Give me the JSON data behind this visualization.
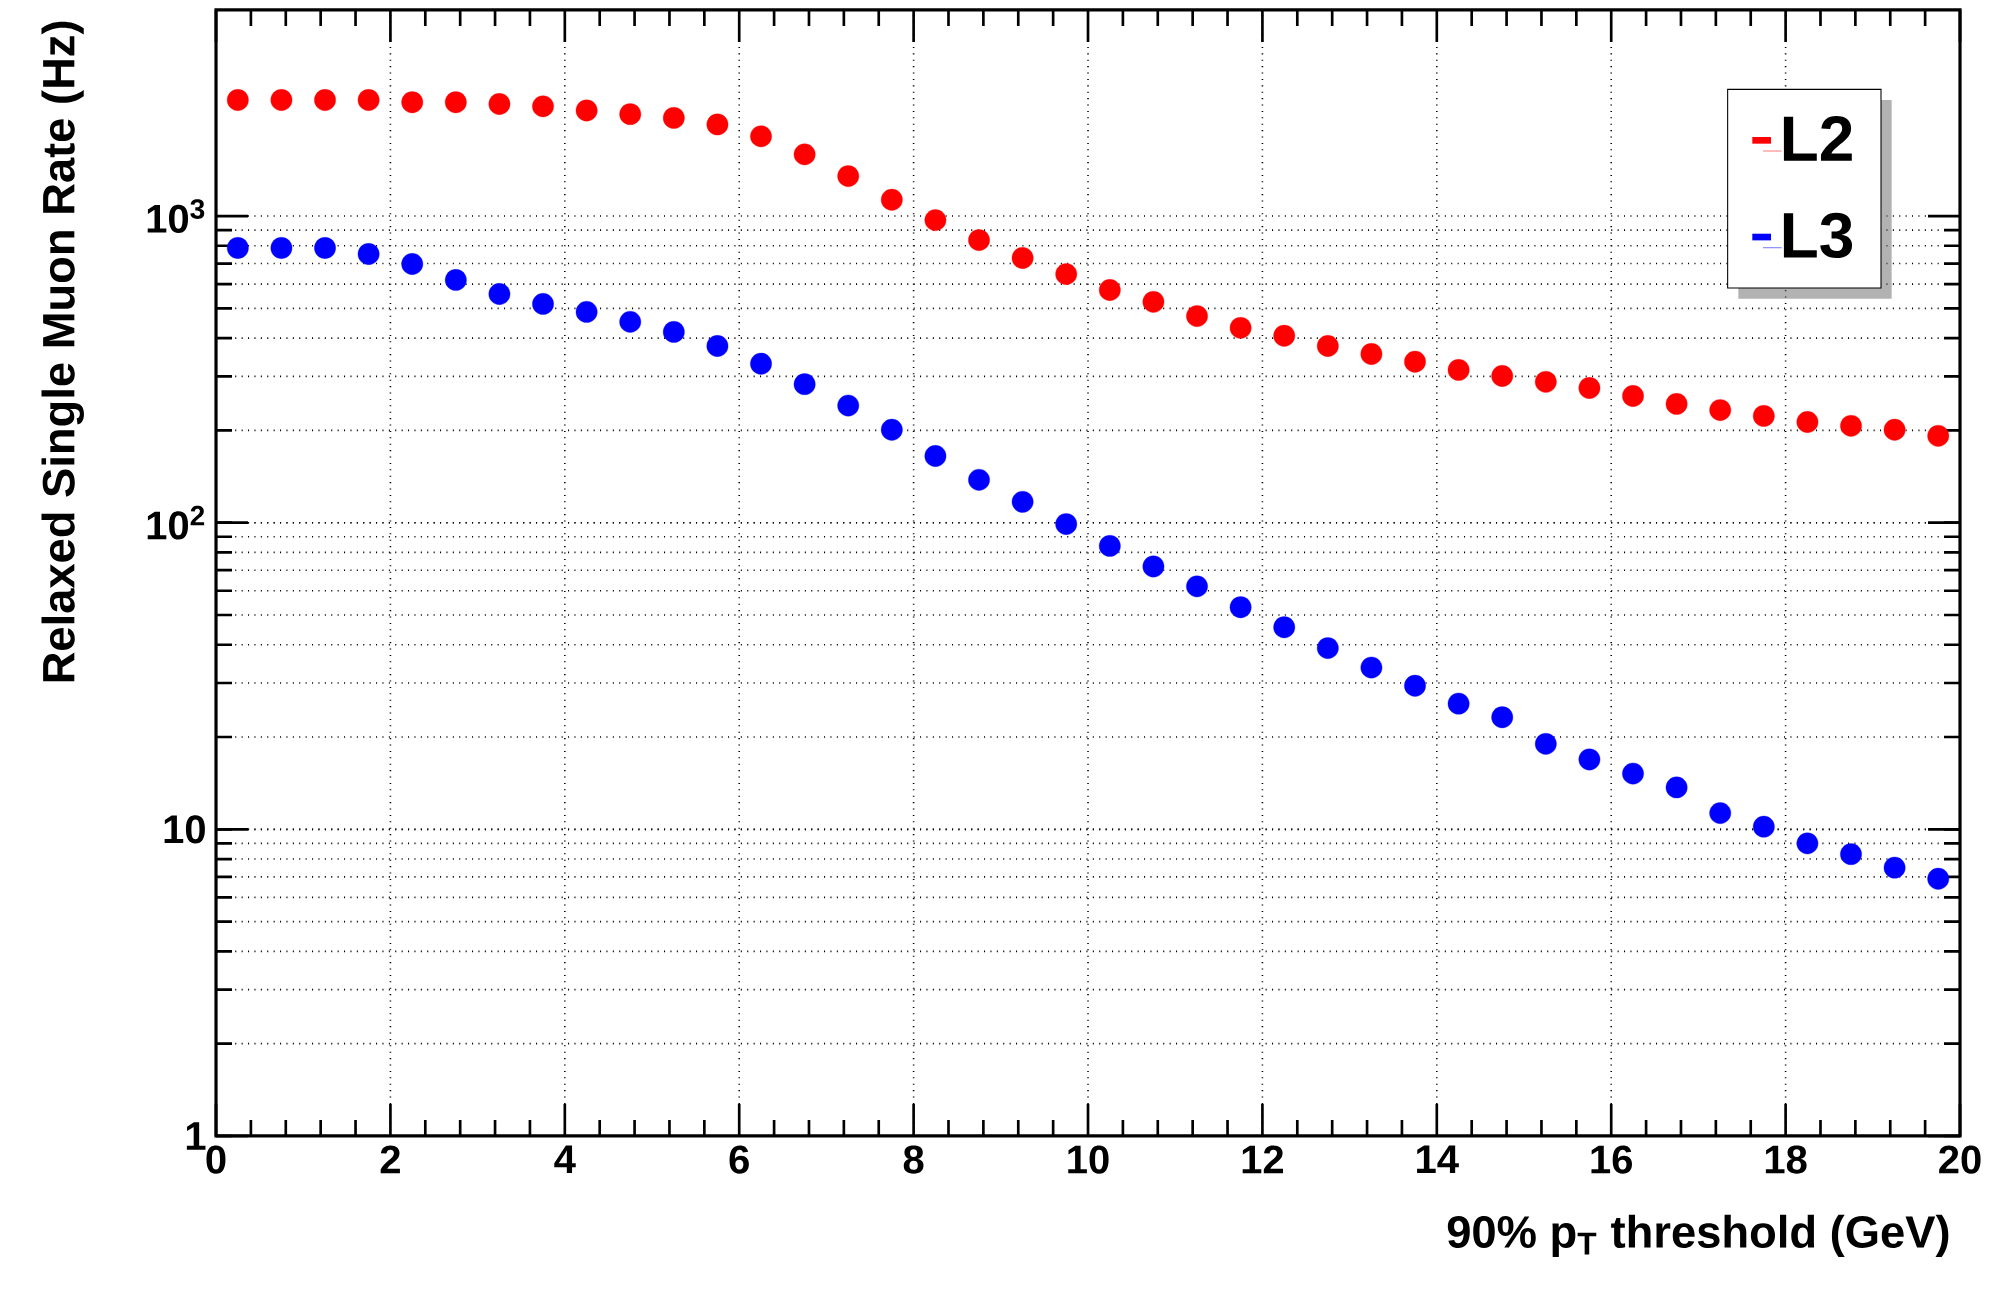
{
  "chart_data": {
    "type": "scatter",
    "xlabel": "90% p$_{T}$ threshold (GeV)",
    "ylabel": "Relaxed Single Muon Rate (Hz)",
    "x": [
      0.25,
      0.75,
      1.25,
      1.75,
      2.25,
      2.75,
      3.25,
      3.75,
      4.25,
      4.75,
      5.25,
      5.75,
      6.25,
      6.75,
      7.25,
      7.75,
      8.25,
      8.75,
      9.25,
      9.75,
      10.25,
      10.75,
      11.25,
      11.75,
      12.25,
      12.75,
      13.25,
      13.75,
      14.25,
      14.75,
      15.25,
      15.75,
      16.25,
      16.75,
      17.25,
      17.75,
      18.25,
      18.75,
      19.25,
      19.75
    ],
    "series": [
      {
        "name": "L2",
        "color": "#ff0000",
        "values": [
          2390,
          2390,
          2390,
          2390,
          2350,
          2350,
          2320,
          2280,
          2210,
          2150,
          2090,
          1990,
          1820,
          1590,
          1350,
          1130,
          970,
          835,
          730,
          647,
          574,
          525,
          472,
          432,
          407,
          377,
          355,
          335,
          315,
          301,
          288,
          275,
          259,
          244,
          233,
          223,
          213,
          207,
          201,
          192
        ]
      },
      {
        "name": "L3",
        "color": "#0000ff",
        "values": [
          787,
          787,
          787,
          752,
          698,
          619,
          557,
          517,
          487,
          452,
          419,
          377,
          330,
          283,
          241,
          201,
          165,
          138,
          117,
          99,
          84,
          72,
          62,
          53,
          45.6,
          39.0,
          33.7,
          29.4,
          25.7,
          23.2,
          19.0,
          16.9,
          15.2,
          13.7,
          11.3,
          10.2,
          9.0,
          8.3,
          7.5,
          6.9
        ]
      }
    ],
    "xlim": [
      0,
      20
    ],
    "xticks": [
      0,
      2,
      4,
      6,
      8,
      10,
      12,
      14,
      16,
      18,
      20
    ],
    "ylim": [
      1,
      4700
    ],
    "yticks": [
      {
        "value": 1,
        "label": "1"
      },
      {
        "value": 10,
        "label": "10"
      },
      {
        "value": 100,
        "label": "10$^{2}$"
      },
      {
        "value": 1000,
        "label": "10$^{3}$"
      }
    ],
    "log": "y",
    "grid": true,
    "legend": "top right",
    "marker": "circle"
  }
}
